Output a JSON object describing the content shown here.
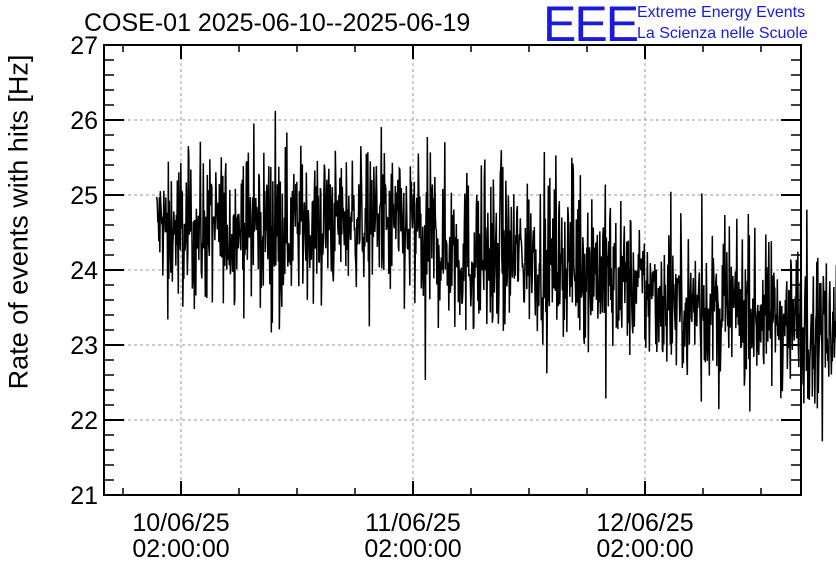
{
  "chart_data": {
    "type": "line",
    "title": "COSE-01 2025-06-10--2025-06-19",
    "xlabel": "",
    "ylabel": "Rate of events with hits [Hz]",
    "ylim": [
      21,
      27
    ],
    "yticks": [
      "21",
      "22",
      "23",
      "24",
      "25",
      "26",
      "27"
    ],
    "xticks": [
      {
        "date": "10/06/25",
        "time": "02:00:00"
      },
      {
        "date": "11/06/25",
        "time": "02:00:00"
      },
      {
        "date": "12/06/25",
        "time": "02:00:00"
      }
    ],
    "grid": true,
    "line_color": "#000000",
    "series": [
      {
        "x": [
          "2025-06-09 23:30",
          "2025-06-10 02:00",
          "2025-06-10 08:00",
          "2025-06-10 14:00",
          "2025-06-10 20:00",
          "2025-06-11 02:00",
          "2025-06-11 08:00",
          "2025-06-11 14:00",
          "2025-06-11 20:00",
          "2025-06-12 02:00",
          "2025-06-12 08:00",
          "2025-06-12 14:00",
          "2025-06-12 20:00",
          "2025-06-12 23:00"
        ],
        "mean": [
          24.6,
          24.5,
          24.6,
          24.6,
          24.7,
          24.5,
          24.2,
          24.2,
          24.1,
          23.7,
          23.5,
          23.4,
          23.3,
          23.4
        ],
        "min": [
          23.4,
          22.8,
          23.0,
          23.3,
          23.4,
          22.4,
          22.1,
          22.5,
          22.0,
          22.4,
          22.1,
          21.9,
          21.5,
          22.6
        ],
        "max": [
          25.8,
          26.0,
          26.1,
          26.6,
          26.0,
          25.9,
          25.7,
          25.6,
          25.5,
          25.3,
          25.1,
          25.0,
          24.8,
          24.5
        ]
      }
    ]
  },
  "logo": {
    "mark": "EEE",
    "line1": "Extreme Energy Events",
    "line2": "La Scienza nelle Scuole",
    "color": "#1a1adc"
  }
}
